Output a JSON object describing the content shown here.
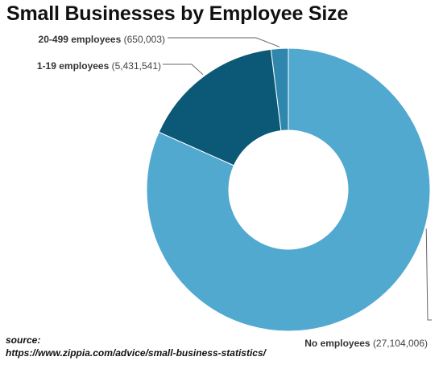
{
  "chart_data": {
    "type": "pie",
    "title": "Small Businesses by Employee Size",
    "donut": true,
    "slices": [
      {
        "label": "No employees",
        "value": 27104006,
        "display": "(27,104,006)",
        "color": "#52a9cf"
      },
      {
        "label": "1-19 employees",
        "value": 5431541,
        "display": "(5,431,541)",
        "color": "#0b5877"
      },
      {
        "label": "20-499 employees",
        "value": 650003,
        "display": "(650,003)",
        "color": "#2f87ad"
      }
    ],
    "legend": "none"
  },
  "source": {
    "label": "source:",
    "url": "https://www.zippia.com/advice/small-business-statistics/"
  }
}
